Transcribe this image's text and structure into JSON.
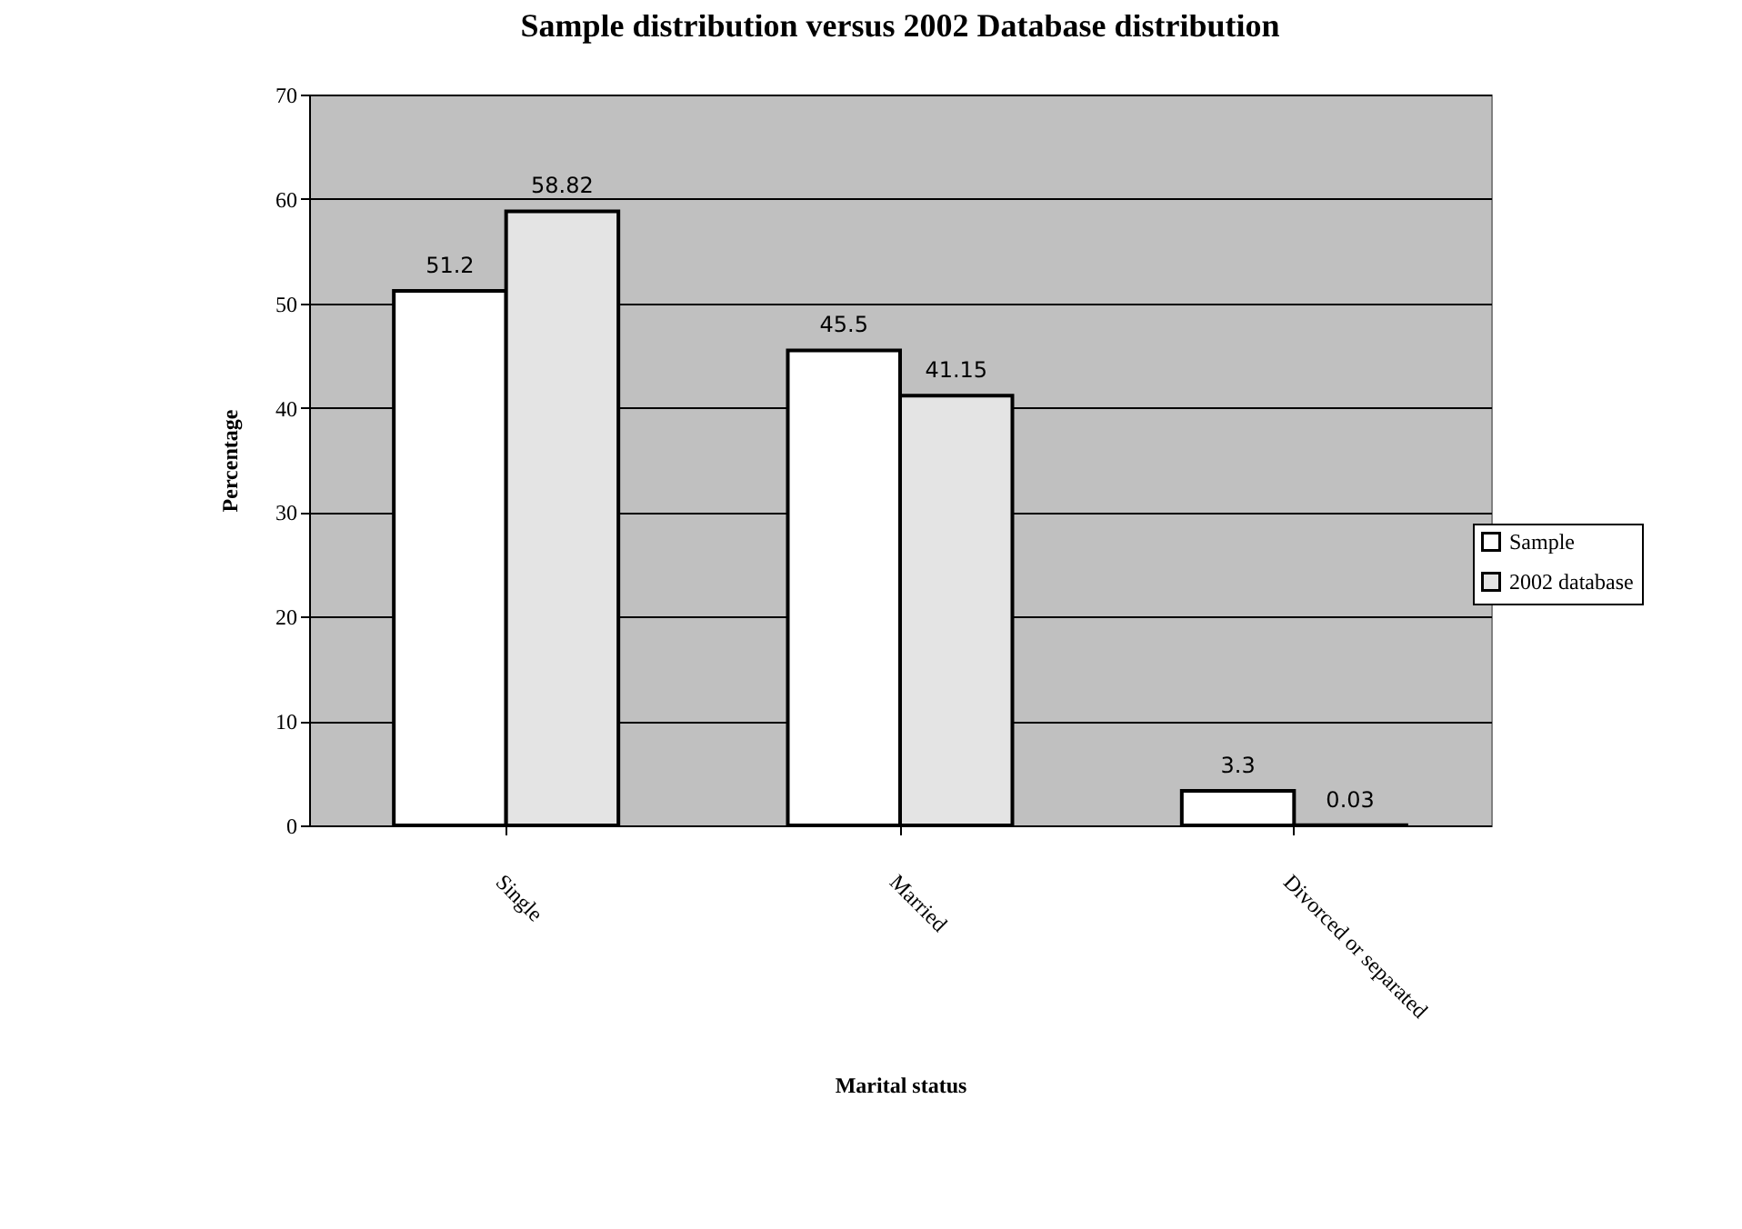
{
  "chart_data": {
    "type": "bar",
    "title": "Sample distribution versus 2002 Database distribution",
    "xlabel": "Marital status",
    "ylabel": "Percentage",
    "categories": [
      "Single",
      "Married",
      "Divorced or separated"
    ],
    "series": [
      {
        "name": "Sample",
        "color": "#ffffff",
        "values": [
          51.2,
          45.5,
          3.3
        ]
      },
      {
        "name": "2002 database",
        "color": "#e4e4e4",
        "values": [
          58.82,
          41.15,
          0.03
        ]
      }
    ],
    "ylim": [
      0,
      70
    ],
    "yticks": [
      0,
      10,
      20,
      30,
      40,
      50,
      60,
      70
    ],
    "grid": "y",
    "legend": "right",
    "data_labels": true
  }
}
